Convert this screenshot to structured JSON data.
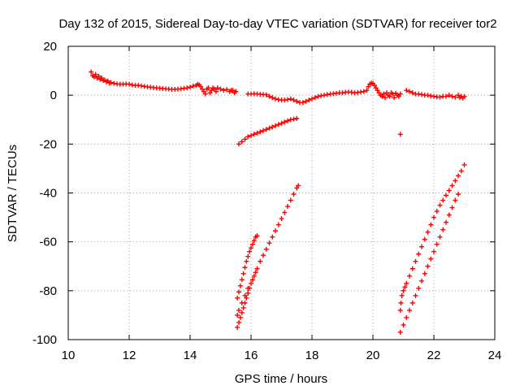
{
  "chart_data": {
    "type": "scatter",
    "title": "Day 132 of 2015, Sidereal Day-to-day VTEC variation (SDTVAR) for receiver tor2",
    "xlabel": "GPS time / hours",
    "ylabel": "SDTVAR / TECUs",
    "xlim": [
      10,
      24
    ],
    "ylim": [
      -100,
      20
    ],
    "xticks": [
      "10",
      "12",
      "14",
      "16",
      "18",
      "20",
      "22",
      "24"
    ],
    "yticks": [
      "20",
      "0",
      "-20",
      "-40",
      "-60",
      "-80",
      "-100"
    ],
    "grid": true,
    "marker": "plus",
    "color": "#ff0000",
    "series": [
      {
        "points": [
          [
            10.75,
            9.5
          ],
          [
            10.8,
            8.0
          ],
          [
            10.85,
            7.5
          ],
          [
            10.9,
            8.5
          ],
          [
            10.95,
            7.0
          ],
          [
            11.0,
            7.8
          ],
          [
            11.05,
            6.5
          ],
          [
            11.1,
            7.0
          ],
          [
            11.15,
            6.0
          ],
          [
            11.2,
            6.2
          ],
          [
            11.25,
            5.5
          ],
          [
            11.3,
            5.8
          ],
          [
            11.35,
            5.0
          ],
          [
            11.4,
            5.2
          ],
          [
            11.5,
            4.8
          ],
          [
            11.6,
            4.6
          ],
          [
            11.7,
            4.5
          ],
          [
            11.8,
            4.5
          ],
          [
            11.9,
            4.6
          ],
          [
            12.0,
            4.5
          ],
          [
            12.1,
            4.2
          ],
          [
            12.2,
            4.0
          ],
          [
            12.3,
            4.0
          ],
          [
            12.4,
            3.8
          ],
          [
            12.5,
            3.6
          ],
          [
            12.6,
            3.4
          ],
          [
            12.7,
            3.3
          ],
          [
            12.8,
            3.1
          ],
          [
            12.9,
            3.0
          ],
          [
            13.0,
            2.9
          ],
          [
            13.1,
            2.7
          ],
          [
            13.2,
            2.6
          ],
          [
            13.3,
            2.5
          ],
          [
            13.4,
            2.4
          ],
          [
            13.5,
            2.4
          ],
          [
            13.6,
            2.5
          ],
          [
            13.7,
            2.6
          ],
          [
            13.8,
            2.8
          ],
          [
            13.9,
            3.0
          ],
          [
            14.0,
            3.3
          ],
          [
            14.1,
            3.7
          ],
          [
            14.2,
            4.0
          ],
          [
            14.25,
            4.5
          ],
          [
            14.3,
            4.2
          ],
          [
            14.35,
            3.5
          ],
          [
            14.4,
            2.5
          ],
          [
            14.45,
            1.5
          ],
          [
            14.5,
            0.5
          ],
          [
            14.55,
            2.5
          ],
          [
            14.6,
            3.0
          ],
          [
            14.65,
            1.0
          ],
          [
            14.7,
            2.0
          ],
          [
            14.75,
            3.0
          ],
          [
            14.8,
            2.5
          ],
          [
            14.85,
            1.5
          ],
          [
            14.9,
            3.0
          ],
          [
            15.0,
            2.5
          ],
          [
            15.1,
            2.0
          ],
          [
            15.2,
            2.3
          ],
          [
            15.3,
            1.5
          ],
          [
            15.35,
            2.0
          ],
          [
            15.4,
            2.0
          ],
          [
            15.45,
            1.0
          ],
          [
            15.5,
            1.5
          ],
          [
            15.9,
            0.5
          ],
          [
            16.0,
            0.5
          ],
          [
            16.1,
            0.6
          ],
          [
            16.2,
            0.5
          ],
          [
            16.3,
            0.4
          ],
          [
            16.4,
            0.3
          ],
          [
            16.5,
            0.2
          ],
          [
            16.6,
            -0.5
          ],
          [
            16.7,
            -1.0
          ],
          [
            16.8,
            -1.5
          ],
          [
            16.9,
            -1.8
          ],
          [
            17.0,
            -2.0
          ],
          [
            17.1,
            -2.0
          ],
          [
            17.2,
            -1.8
          ],
          [
            17.3,
            -1.5
          ],
          [
            17.4,
            -2.0
          ],
          [
            17.5,
            -2.5
          ],
          [
            17.6,
            -3.0
          ],
          [
            17.7,
            -3.0
          ],
          [
            17.8,
            -2.5
          ],
          [
            17.9,
            -2.0
          ],
          [
            18.0,
            -1.5
          ],
          [
            18.1,
            -1.0
          ],
          [
            18.2,
            -0.5
          ],
          [
            18.3,
            -0.2
          ],
          [
            18.4,
            0.0
          ],
          [
            18.5,
            0.3
          ],
          [
            18.6,
            0.5
          ],
          [
            18.7,
            0.6
          ],
          [
            18.8,
            0.8
          ],
          [
            18.9,
            1.0
          ],
          [
            19.0,
            1.0
          ],
          [
            19.1,
            1.2
          ],
          [
            19.2,
            1.3
          ],
          [
            19.3,
            1.2
          ],
          [
            19.4,
            1.0
          ],
          [
            19.5,
            1.1
          ],
          [
            19.6,
            1.3
          ],
          [
            19.7,
            1.5
          ],
          [
            19.8,
            2.0
          ],
          [
            19.85,
            3.5
          ],
          [
            19.9,
            4.5
          ],
          [
            19.95,
            5.0
          ],
          [
            20.0,
            4.8
          ],
          [
            20.05,
            4.0
          ],
          [
            20.1,
            3.0
          ],
          [
            20.15,
            2.0
          ],
          [
            20.2,
            1.0
          ],
          [
            20.25,
            0.0
          ],
          [
            20.3,
            -0.5
          ],
          [
            20.35,
            0.5
          ],
          [
            20.4,
            -1.0
          ],
          [
            20.45,
            1.0
          ],
          [
            20.5,
            0.0
          ],
          [
            20.55,
            -0.5
          ],
          [
            20.6,
            1.0
          ],
          [
            20.65,
            0.5
          ],
          [
            20.7,
            -1.0
          ],
          [
            20.75,
            0.8
          ],
          [
            20.8,
            0.0
          ],
          [
            20.85,
            -0.5
          ],
          [
            20.9,
            0.5
          ],
          [
            21.1,
            2.0
          ],
          [
            21.2,
            1.5
          ],
          [
            21.3,
            1.0
          ],
          [
            21.4,
            0.5
          ],
          [
            21.5,
            0.5
          ],
          [
            21.6,
            0.3
          ],
          [
            21.7,
            0.0
          ],
          [
            21.8,
            0.0
          ],
          [
            21.9,
            -0.3
          ],
          [
            22.0,
            -0.5
          ],
          [
            22.1,
            -0.7
          ],
          [
            22.2,
            -0.8
          ],
          [
            22.3,
            -0.5
          ],
          [
            22.4,
            -0.5
          ],
          [
            22.5,
            0.0
          ],
          [
            22.6,
            -0.5
          ],
          [
            22.7,
            -0.8
          ],
          [
            22.8,
            0.0
          ],
          [
            22.85,
            -1.0
          ],
          [
            22.9,
            -0.5
          ],
          [
            22.95,
            -1.2
          ],
          [
            23.0,
            -0.5
          ],
          [
            15.6,
            -20.0
          ],
          [
            15.7,
            -19.0
          ],
          [
            15.8,
            -18.0
          ],
          [
            15.9,
            -17.0
          ],
          [
            16.0,
            -16.5
          ],
          [
            16.1,
            -16.0
          ],
          [
            16.2,
            -15.5
          ],
          [
            16.3,
            -15.0
          ],
          [
            16.4,
            -14.5
          ],
          [
            16.5,
            -14.0
          ],
          [
            16.6,
            -13.5
          ],
          [
            16.7,
            -13.0
          ],
          [
            16.8,
            -12.5
          ],
          [
            16.9,
            -12.0
          ],
          [
            17.0,
            -11.5
          ],
          [
            17.1,
            -11.0
          ],
          [
            17.2,
            -10.5
          ],
          [
            17.3,
            -10.0
          ],
          [
            17.4,
            -9.8
          ],
          [
            17.5,
            -9.5
          ],
          [
            20.9,
            -16.0
          ],
          [
            15.55,
            -83.0
          ],
          [
            15.6,
            -80.5
          ],
          [
            15.65,
            -78.0
          ],
          [
            15.7,
            -75.5
          ],
          [
            15.75,
            -73.0
          ],
          [
            15.8,
            -70.5
          ],
          [
            15.85,
            -68.0
          ],
          [
            15.9,
            -66.0
          ],
          [
            15.95,
            -64.0
          ],
          [
            16.0,
            -62.5
          ],
          [
            16.05,
            -61.0
          ],
          [
            16.1,
            -59.5
          ],
          [
            16.15,
            -58.0
          ],
          [
            16.2,
            -57.5
          ],
          [
            15.55,
            -95.0
          ],
          [
            15.6,
            -93.0
          ],
          [
            15.65,
            -91.0
          ],
          [
            15.7,
            -89.0
          ],
          [
            15.75,
            -87.0
          ],
          [
            15.8,
            -85.0
          ],
          [
            15.85,
            -83.0
          ],
          [
            15.9,
            -81.0
          ],
          [
            15.95,
            -79.0
          ],
          [
            16.0,
            -77.0
          ],
          [
            16.05,
            -75.5
          ],
          [
            16.1,
            -74.0
          ],
          [
            16.15,
            -72.5
          ],
          [
            16.2,
            -71.0
          ],
          [
            16.3,
            -68.0
          ],
          [
            16.4,
            -65.5
          ],
          [
            16.5,
            -63.0
          ],
          [
            16.6,
            -60.5
          ],
          [
            16.7,
            -58.0
          ],
          [
            16.8,
            -55.5
          ],
          [
            16.9,
            -53.0
          ],
          [
            17.0,
            -50.5
          ],
          [
            17.1,
            -48.0
          ],
          [
            17.2,
            -45.5
          ],
          [
            17.3,
            -43.0
          ],
          [
            17.4,
            -40.5
          ],
          [
            17.5,
            -38.0
          ],
          [
            17.55,
            -37.0
          ],
          [
            15.55,
            -90.0
          ],
          [
            15.6,
            -88.0
          ],
          [
            15.7,
            -85.0
          ],
          [
            15.8,
            -82.0
          ],
          [
            15.9,
            -79.0
          ],
          [
            20.9,
            -88.0
          ],
          [
            20.92,
            -85.0
          ],
          [
            20.95,
            -82.0
          ],
          [
            21.0,
            -80.0
          ],
          [
            21.05,
            -78.5
          ],
          [
            21.1,
            -77.0
          ],
          [
            21.2,
            -74.0
          ],
          [
            21.3,
            -71.0
          ],
          [
            21.4,
            -68.0
          ],
          [
            21.5,
            -65.0
          ],
          [
            21.6,
            -62.0
          ],
          [
            21.7,
            -59.0
          ],
          [
            21.8,
            -56.0
          ],
          [
            21.9,
            -53.0
          ],
          [
            22.0,
            -50.0
          ],
          [
            22.1,
            -47.5
          ],
          [
            22.2,
            -45.0
          ],
          [
            22.3,
            -43.0
          ],
          [
            22.4,
            -41.0
          ],
          [
            22.5,
            -39.0
          ],
          [
            22.6,
            -37.0
          ],
          [
            22.7,
            -35.0
          ],
          [
            22.8,
            -33.0
          ],
          [
            22.9,
            -31.0
          ],
          [
            23.0,
            -28.5
          ],
          [
            20.9,
            -97.0
          ],
          [
            21.0,
            -94.0
          ],
          [
            21.1,
            -91.0
          ],
          [
            21.2,
            -88.0
          ],
          [
            21.3,
            -85.0
          ],
          [
            21.4,
            -82.0
          ],
          [
            21.5,
            -79.0
          ],
          [
            21.6,
            -76.0
          ],
          [
            21.7,
            -73.0
          ],
          [
            21.8,
            -70.0
          ],
          [
            21.9,
            -67.0
          ],
          [
            22.0,
            -64.0
          ],
          [
            22.1,
            -61.0
          ],
          [
            22.2,
            -58.0
          ],
          [
            22.3,
            -55.0
          ],
          [
            22.4,
            -52.0
          ],
          [
            22.5,
            -49.0
          ],
          [
            22.6,
            -46.0
          ],
          [
            22.7,
            -43.0
          ],
          [
            22.8,
            -40.5
          ]
        ]
      }
    ]
  }
}
